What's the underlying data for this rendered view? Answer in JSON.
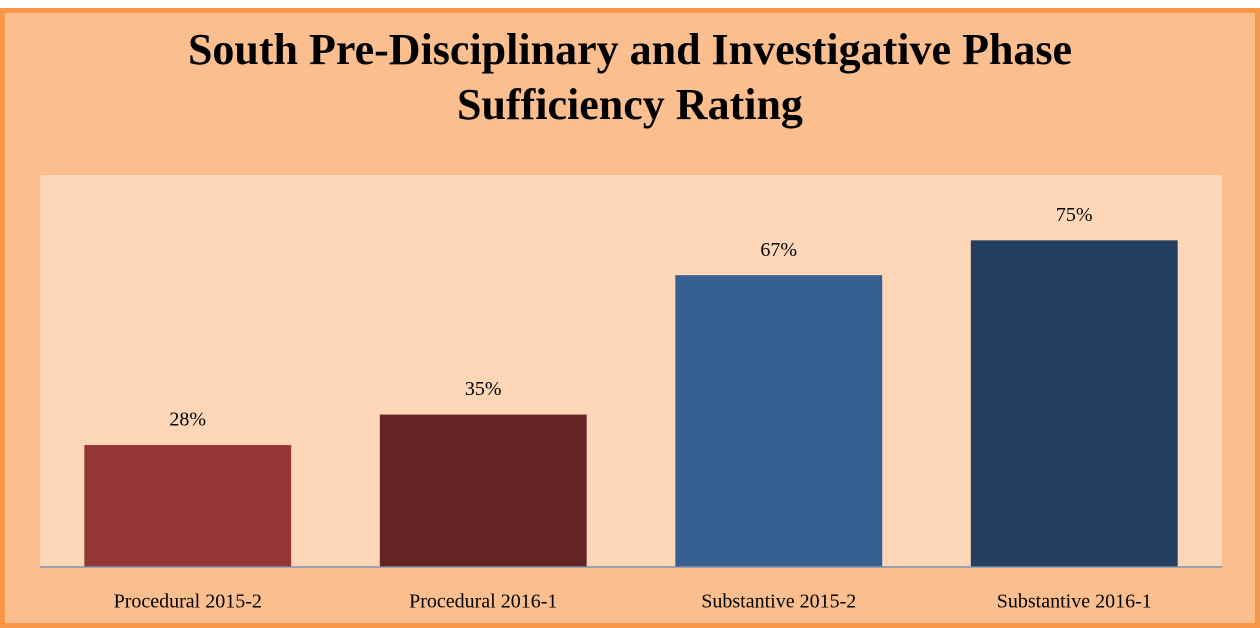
{
  "chart_data": {
    "type": "bar",
    "title": "South Pre-Disciplinary and Investigative Phase Sufficiency Rating",
    "categories": [
      "Procedural 2015-2",
      "Procedural 2016-1",
      "Substantive 2015-2",
      "Substantive 2016-1"
    ],
    "values": [
      28,
      35,
      67,
      75
    ],
    "value_labels": [
      "28%",
      "35%",
      "67%",
      "75%"
    ],
    "colors": [
      "#943634",
      "#632523",
      "#366092",
      "#243f60"
    ],
    "ylim": [
      0,
      90
    ],
    "grid": false
  }
}
